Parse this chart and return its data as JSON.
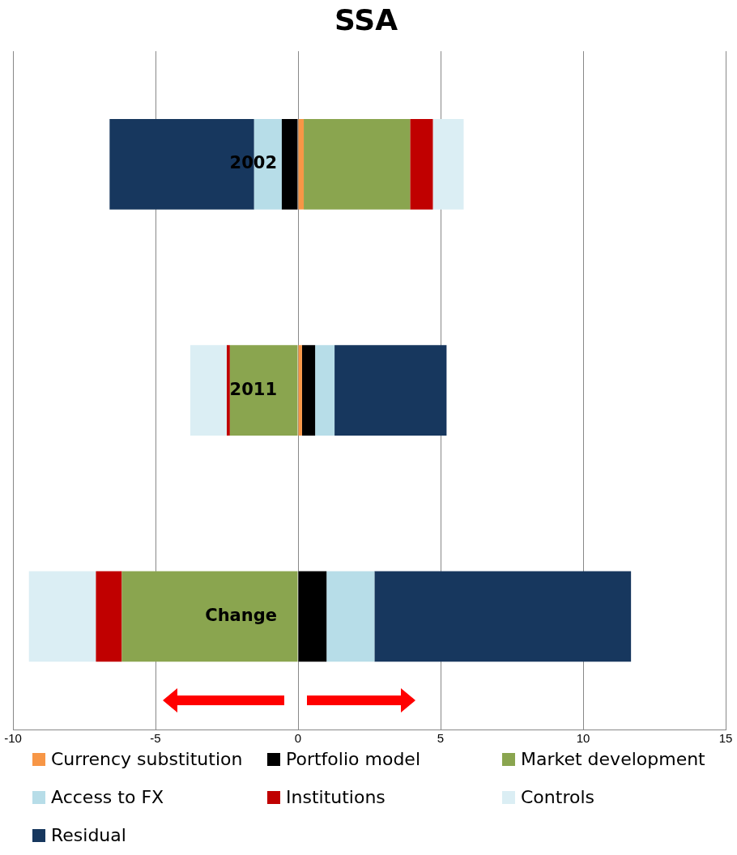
{
  "chart_data": {
    "type": "bar",
    "title": "SSA",
    "orientation": "horizontal",
    "stacked": true,
    "categories": [
      "2002",
      "2011",
      "Change"
    ],
    "series": [
      {
        "name": "Currency substitution",
        "color": "#f79646",
        "values": [
          0.2,
          0.14,
          0
        ]
      },
      {
        "name": "Portfolio model",
        "color": "#000000",
        "values": [
          -0.57,
          0.46,
          1.0
        ]
      },
      {
        "name": "Market development",
        "color": "#8aa54f",
        "values": [
          3.73,
          -2.39,
          -6.18
        ]
      },
      {
        "name": "Access to FX",
        "color": "#b7dde8",
        "values": [
          -0.97,
          0.68,
          1.68
        ]
      },
      {
        "name": "Institutions",
        "color": "#c00000",
        "values": [
          0.8,
          -0.11,
          -0.91
        ]
      },
      {
        "name": "Controls",
        "color": "#dbeef4",
        "values": [
          1.08,
          -1.28,
          -2.35
        ]
      },
      {
        "name": "Residual",
        "color": "#17375e",
        "values": [
          -5.07,
          3.93,
          9.0
        ]
      }
    ],
    "xlim": [
      -10,
      15
    ],
    "xticks": [
      -10,
      -5,
      0,
      5,
      10,
      15
    ],
    "grid": "x",
    "legend": "bottom",
    "tick_labels": "x"
  }
}
